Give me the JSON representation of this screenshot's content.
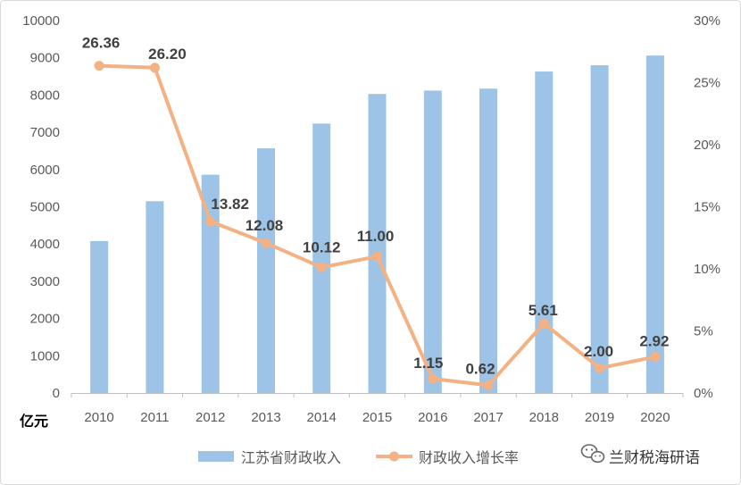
{
  "chart_data": {
    "type": "bar",
    "categories": [
      "2010",
      "2011",
      "2012",
      "2013",
      "2014",
      "2015",
      "2016",
      "2017",
      "2018",
      "2019",
      "2020"
    ],
    "series": [
      {
        "name": "江苏省财政收入",
        "type": "bar",
        "axis": "left",
        "color": "#9DC3E6",
        "values": [
          4080,
          5149,
          5861,
          6568,
          7233,
          8029,
          8121,
          8172,
          8630,
          8802,
          9059
        ]
      },
      {
        "name": "财政收入增长率",
        "type": "line",
        "axis": "right",
        "color": "#F4B183",
        "values": [
          26.36,
          26.2,
          13.82,
          12.08,
          10.12,
          11.0,
          1.15,
          0.62,
          5.61,
          2.0,
          2.92
        ],
        "labels": [
          "26.36",
          "26.20",
          "13.82",
          "12.08",
          "10.12",
          "11.00",
          "1.15",
          "0.62",
          "5.61",
          "2.00",
          "2.92"
        ]
      }
    ],
    "y_left": {
      "range": [
        0,
        10000
      ],
      "ticks": [
        "0",
        "1000",
        "2000",
        "3000",
        "4000",
        "5000",
        "6000",
        "7000",
        "8000",
        "9000",
        "10000"
      ],
      "unit_label": "亿元"
    },
    "y_right": {
      "range": [
        0,
        30
      ],
      "ticks": [
        "0%",
        "5%",
        "10%",
        "15%",
        "20%",
        "25%",
        "30%"
      ]
    },
    "grid": false,
    "legend": {
      "position": "bottom"
    }
  },
  "watermark": {
    "icon": "wechat-icon",
    "text": "兰财税海研语"
  }
}
